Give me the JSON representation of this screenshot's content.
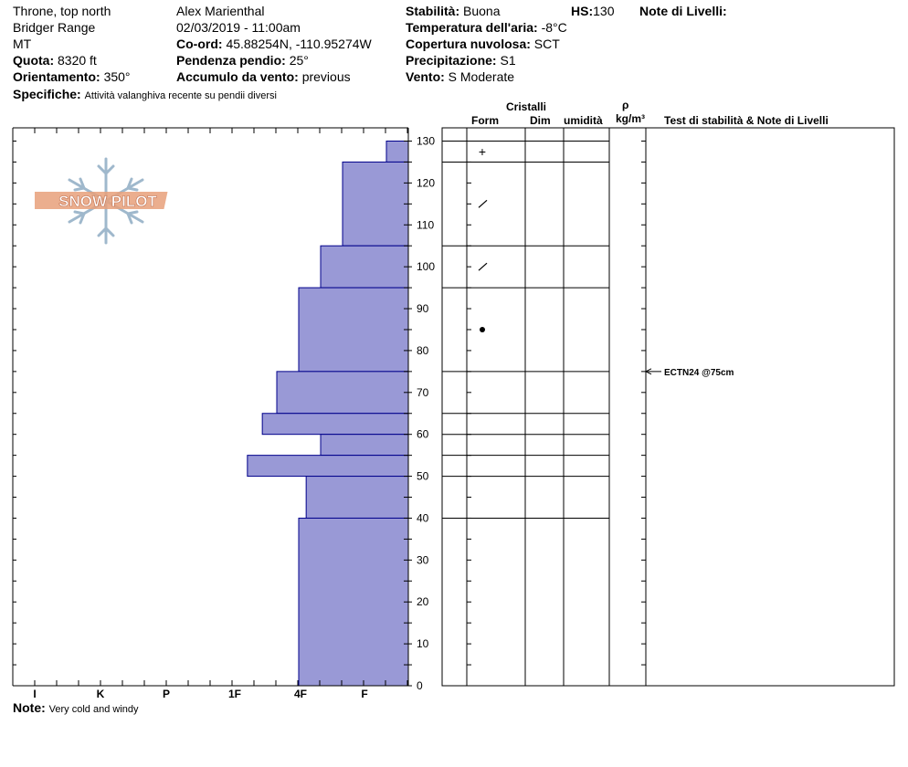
{
  "header": {
    "location": "Throne, top north",
    "range": "Bridger Range",
    "state": "MT",
    "elevation_label": "Quota:",
    "elevation_value": "8320 ft",
    "aspect_label": "Orientamento:",
    "aspect_value": "350°",
    "details_label": "Specifiche:",
    "details_value": "Attività valanghiva recente su pendii diversi",
    "observer": "Alex Marienthal",
    "datetime": "02/03/2019 - 11:00am",
    "coord_label": "Co-ord:",
    "coord_value": "45.88254N, -110.95274W",
    "slope_label": "Pendenza pendio:",
    "slope_value": "25°",
    "wind_loading_label": "Accumulo da vento:",
    "wind_loading_value": "previous",
    "stability_label": "Stabilità:",
    "stability_value": "Buona",
    "hs_label": "HS:",
    "hs_value": "130",
    "air_temp_label": "Temperatura dell'aria:",
    "air_temp_value": "-8°C",
    "sky_label": "Copertura nuvolosa:",
    "sky_value": "SCT",
    "precip_label": "Precipitazione:",
    "precip_value": "S1",
    "wind_label": "Vento:",
    "wind_value": "S Moderate",
    "layer_notes_label": "Note di Livelli:"
  },
  "columns": {
    "crystals": "Cristalli",
    "form": "Form",
    "size": "Dim",
    "moisture": "umidità",
    "density_symbol": "ρ",
    "density_unit": "kg/m³",
    "tests": "Test di stabilità & Note di Livelli"
  },
  "footer": {
    "note_label": "Note:",
    "note_value": "Very cold and windy"
  },
  "logo_text": "SNOW PILOT",
  "colors": {
    "bar_fill": "#9999d6",
    "bar_stroke": "#00008b",
    "logo_orange": "#e8a07a",
    "logo_blue": "#9fb8cc"
  },
  "chart_data": {
    "type": "bar",
    "orientation": "horizontal",
    "y_axis": {
      "label": "",
      "range": [
        0,
        130
      ],
      "ticks": [
        0,
        10,
        20,
        30,
        40,
        50,
        60,
        70,
        80,
        90,
        100,
        110,
        120,
        130
      ]
    },
    "x_axis": {
      "label": "",
      "categories": [
        "I",
        "K",
        "P",
        "1F",
        "4F",
        "F"
      ]
    },
    "hardness_scale_note": "F=1, 4F=2, 1F=3, P=4, K=5, I=6",
    "layers": [
      {
        "top": 130,
        "bottom": 125,
        "hardness": 0.5
      },
      {
        "top": 125,
        "bottom": 105,
        "hardness": 1.5
      },
      {
        "top": 105,
        "bottom": 95,
        "hardness": 2
      },
      {
        "top": 95,
        "bottom": 75,
        "hardness": 2.5
      },
      {
        "top": 75,
        "bottom": 65,
        "hardness": 3
      },
      {
        "top": 65,
        "bottom": 60,
        "hardness": 3.33
      },
      {
        "top": 60,
        "bottom": 55,
        "hardness": 2
      },
      {
        "top": 55,
        "bottom": 50,
        "hardness": 3.67
      },
      {
        "top": 50,
        "bottom": 40,
        "hardness": 2.33
      },
      {
        "top": 40,
        "bottom": 0,
        "hardness": 2.5
      }
    ],
    "layer_boundaries": [
      130,
      125,
      105,
      95,
      75,
      65,
      60,
      55,
      50,
      40
    ],
    "crystal_forms": [
      {
        "depth": 127.5,
        "symbol": "+"
      },
      {
        "depth": 115,
        "symbol": "/"
      },
      {
        "depth": 100,
        "symbol": "/"
      },
      {
        "depth": 85,
        "symbol": "●"
      }
    ],
    "stability_tests": [
      {
        "depth": 75,
        "label": "ECTN24 @75cm"
      }
    ]
  }
}
